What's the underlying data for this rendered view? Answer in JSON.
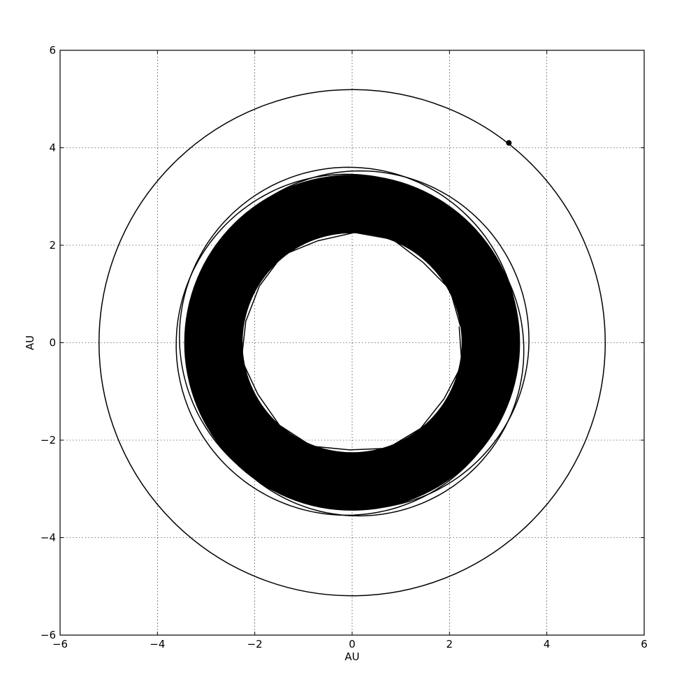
{
  "chart_data": {
    "type": "line",
    "title": "",
    "xlabel": "AU",
    "ylabel": "AU",
    "xlim": [
      -6,
      6
    ],
    "ylim": [
      -6,
      6
    ],
    "xticks": [
      -6,
      -4,
      -2,
      0,
      2,
      4,
      6
    ],
    "yticks": [
      -6,
      -4,
      -2,
      0,
      2,
      4,
      6
    ],
    "xtick_labels": [
      "−6",
      "−4",
      "−2",
      "0",
      "2",
      "4",
      "6"
    ],
    "ytick_labels": [
      "−6",
      "−4",
      "−2",
      "0",
      "2",
      "4",
      "6"
    ],
    "grid": true,
    "grid_style": "dotted",
    "legend": "none",
    "line_color": "#000000",
    "series": [
      {
        "kind": "circular-orbit",
        "center": [
          0,
          0
        ],
        "radius": 5.2
      },
      {
        "kind": "precessing-orbit-band",
        "center": [
          0,
          0
        ],
        "inner_radius": 2.25,
        "outer_radius": 3.45,
        "outermost_excursion": 3.5
      },
      {
        "kind": "marker",
        "x": 3.22,
        "y": 4.1
      }
    ]
  }
}
